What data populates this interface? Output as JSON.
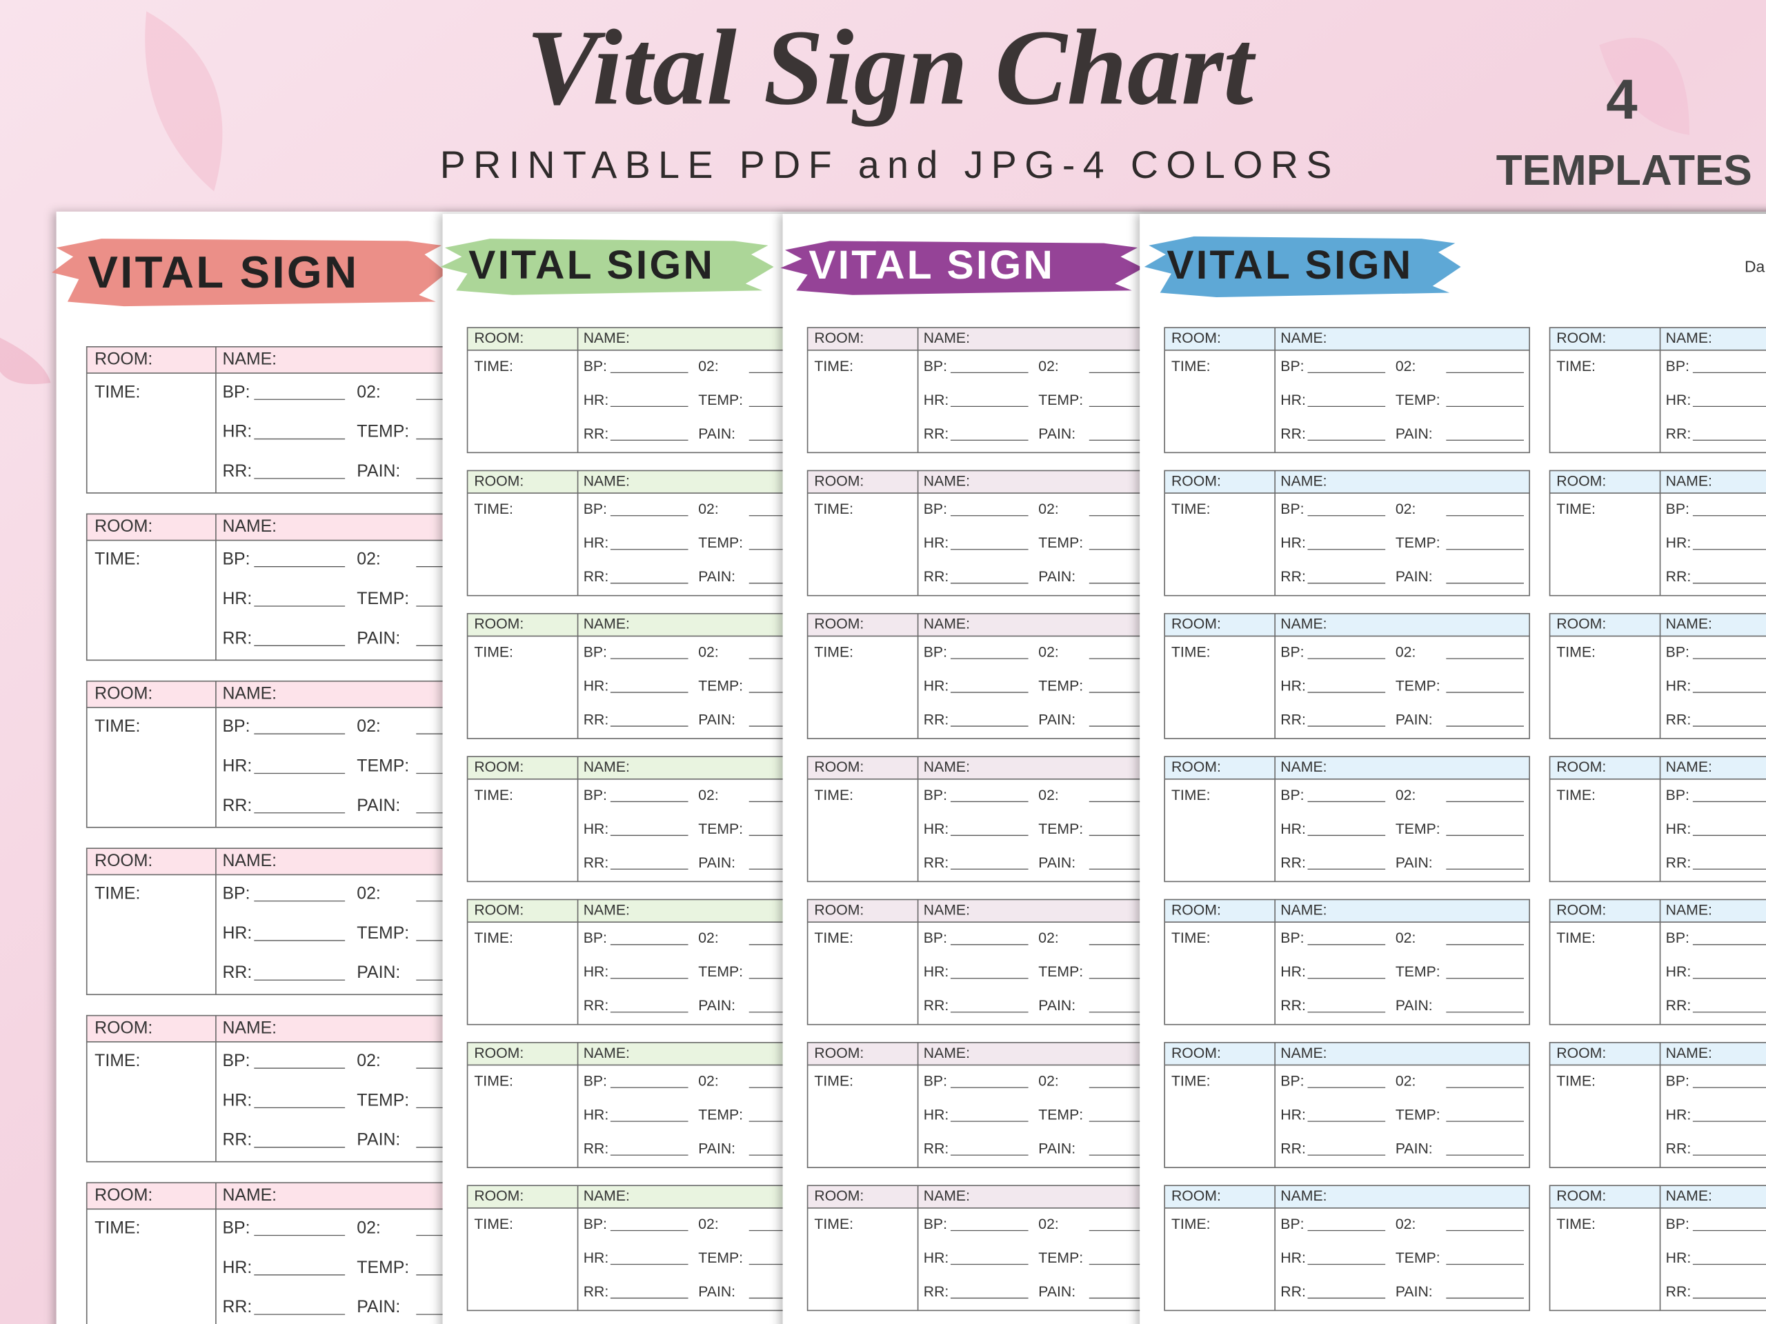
{
  "header": {
    "title": "Vital Sign Chart",
    "subtitle": "PRINTABLE PDF and JPG-4 COLORS",
    "badge_number": "4",
    "badge_label": "TEMPLATES"
  },
  "sheet": {
    "title": "VITAL SIGN",
    "date_label": "Da",
    "fields": {
      "room": "ROOM:",
      "name": "NAME:",
      "time": "TIME:",
      "bp": "BP:",
      "o2": "02:",
      "hr": "HR:",
      "temp": "TEMP:",
      "rr": "RR:",
      "pain": "PAIN:"
    }
  }
}
